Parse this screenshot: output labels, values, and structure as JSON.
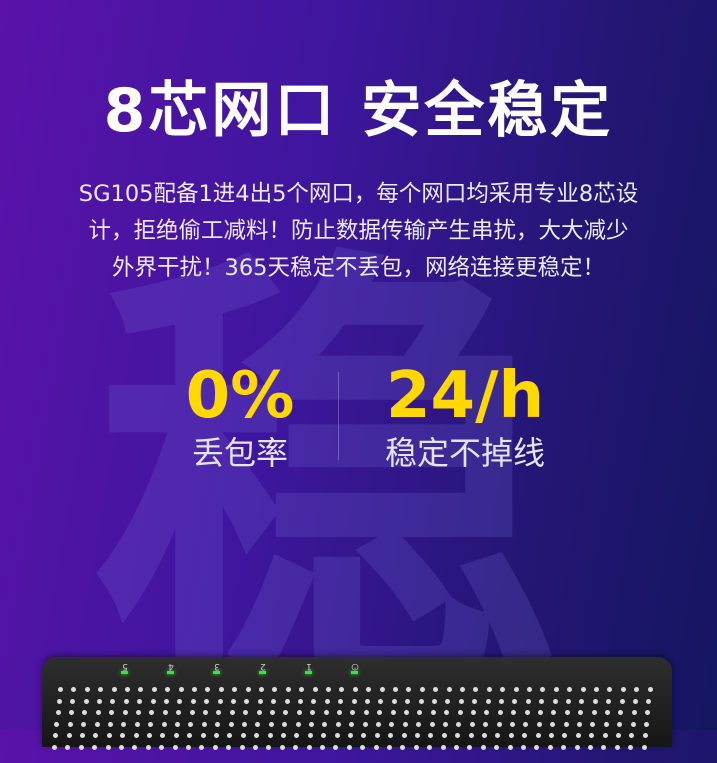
{
  "watermark": "稳",
  "title": "8芯网口 安全稳定",
  "description": [
    "SG105配备1进4出5个网口，每个网口均采用专业8芯设",
    "计，拒绝偷工减料！防止数据传输产生串扰，大大减少",
    "外界干扰！365天稳定不丢包，网络连接更稳定！"
  ],
  "stats": [
    {
      "value": "0%",
      "label": "丢包率"
    },
    {
      "value": "24/h",
      "label": "稳定不掉线"
    }
  ],
  "device": {
    "port_labels": [
      "5",
      "4",
      "3",
      "2",
      "1",
      "⏻"
    ],
    "led_color": "#2ee83a"
  },
  "colors": {
    "accent": "#ffd800",
    "bg_left": "#5a12a9",
    "bg_right": "#141660"
  }
}
